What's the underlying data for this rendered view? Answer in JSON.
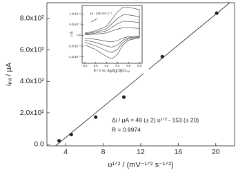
{
  "chart_data": [
    {
      "type": "scatter",
      "x_label": "υ¹ᐟ² / (mV⁻¹ᐟ² s⁻¹ᐟ²)",
      "y_label": "iₚₐ / μA",
      "x": [
        3.3,
        4.6,
        7.2,
        10.2,
        14.3,
        20.1
      ],
      "values": [
        22,
        62,
        173,
        300,
        557,
        834
      ],
      "color": "#222222",
      "fit": {
        "slope": 49,
        "intercept": -153
      },
      "annotations": [
        "Δi / μA = 49 (± 2) υ¹ᐟ² - 153 (± 20)",
        "R = 0.9974"
      ],
      "xlim": [
        2,
        22
      ],
      "xticks": [
        4,
        8,
        12,
        16,
        20
      ],
      "ylim": [
        -10,
        900
      ],
      "yticks": [
        {
          "value": 0,
          "label": "0.0"
        },
        {
          "value": 200,
          "label": "2.0x10²"
        },
        {
          "value": 400,
          "label": "4.0x10²"
        },
        {
          "value": 600,
          "label": "6.0x10²"
        },
        {
          "value": 800,
          "label": "8.0x10²"
        }
      ]
    },
    {
      "type": "line",
      "x_label": "E / V vs. Ag/AgCl|KClₛₐₜ",
      "y_label": "i / A",
      "annotation": "16 - 400 mV s⁻¹",
      "x": [
        -0.2,
        0,
        0.2,
        0.3,
        0.4,
        0.5,
        0.6,
        0.8,
        0.8,
        0.6,
        0.5,
        0.4,
        0.3,
        0.2,
        0,
        -0.2
      ],
      "series": [
        {
          "color": "#333333",
          "values": [
            1.1e-06,
            2.2e-06,
            4.4e-06,
            7.7e-06,
            1.1e-05,
            1.32e-05,
            1.32e-05,
            1.21e-05,
            -1.1e-06,
            -2.2e-06,
            -4.4e-06,
            -8.8e-06,
            -1.1e-05,
            -9.9e-06,
            -6.6e-06,
            -4.4e-06
          ]
        },
        {
          "color": "#333333",
          "values": [
            8e-07,
            1.6e-06,
            3.2e-06,
            5.6e-06,
            8e-06,
            9.6e-06,
            9.6e-06,
            8.8e-06,
            -8e-07,
            -1.6e-06,
            -3.2e-06,
            -6.4e-06,
            -8e-06,
            -7.2e-06,
            -4.8e-06,
            -3.2e-06
          ]
        },
        {
          "color": "#333333",
          "values": [
            5.5e-07,
            1.1e-06,
            2.2e-06,
            3.85e-06,
            5.5e-06,
            6.6e-06,
            6.6e-06,
            6.05e-06,
            -5.5e-07,
            -1.1e-06,
            -2.2e-06,
            -4.4e-06,
            -5.5e-06,
            -4.95e-06,
            -3.3e-06,
            -2.2e-06
          ]
        },
        {
          "color": "#333333",
          "values": [
            3e-07,
            6e-07,
            1.2e-06,
            2.1e-06,
            3e-06,
            3.6e-06,
            3.6e-06,
            3.3e-06,
            -3e-07,
            -6e-07,
            -1.2e-06,
            -2.4e-06,
            -3e-06,
            -2.7e-06,
            -1.8e-06,
            -1.2e-06
          ]
        }
      ],
      "xlim": [
        -0.25,
        0.85
      ],
      "xticks": [
        -0.2,
        {
          "value": 0,
          "label": "0.0"
        },
        0.2,
        0.4,
        0.6,
        0.8
      ],
      "ylim": [
        -1.3e-05,
        1.4e-05
      ],
      "yticks": [
        {
          "value": -1e-05,
          "label": "-1.0x10⁻⁵"
        },
        {
          "value": -5e-06,
          "label": "-5.0x10⁻⁶"
        },
        {
          "value": 0,
          "label": "0.0"
        },
        {
          "value": 5e-06,
          "label": "5.0x10⁻⁶"
        },
        {
          "value": 1e-05,
          "label": "1.0x10⁻⁵"
        }
      ]
    }
  ]
}
